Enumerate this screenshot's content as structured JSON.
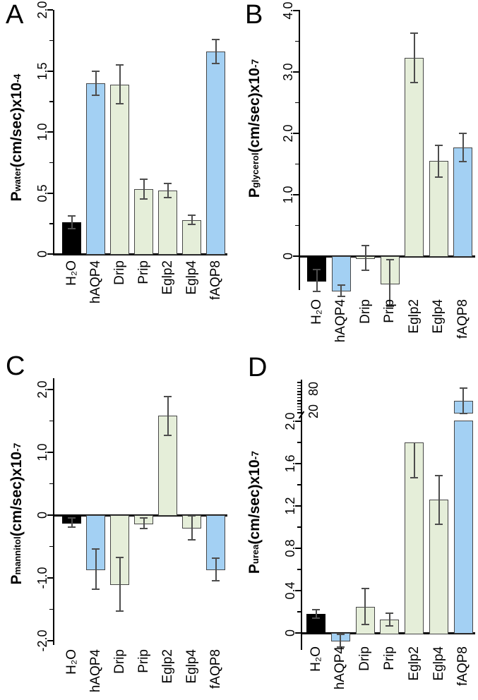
{
  "palette": {
    "black_bar": "#000000",
    "blue_bar": "#a3d0f3",
    "green_bar": "#e5eed9",
    "bar_border": "#474747",
    "error_bar": "#4d4d4d",
    "axis": "#000000",
    "text": "#000000",
    "background": "#ffffff"
  },
  "chart_data": [
    {
      "type": "bar",
      "panel": "A",
      "ylabel": "P_water(cm/sec)x10^-4",
      "ylabel_parts": {
        "prefix": "P",
        "sub": "water",
        "mid": "(cm/sec)x10",
        "exp": "-4"
      },
      "categories": [
        "H₂O",
        "hAQP4",
        "Drip",
        "Prip",
        "Eglp2",
        "Eglp4",
        "fAQP8"
      ],
      "values": [
        0.26,
        1.4,
        1.39,
        0.53,
        0.52,
        0.28,
        1.66
      ],
      "errors": [
        0.05,
        0.1,
        0.16,
        0.08,
        0.06,
        0.04,
        0.1
      ],
      "bar_colors": [
        "black_bar",
        "blue_bar",
        "green_bar",
        "green_bar",
        "green_bar",
        "green_bar",
        "blue_bar"
      ],
      "ylim": [
        0,
        2.0
      ],
      "ytick_labels": [
        "0",
        "0.5",
        "1.0",
        "1.5",
        "2.0"
      ],
      "ytick_values": [
        0,
        0.5,
        1.0,
        1.5,
        2.0
      ],
      "minor_tick_step": 0.25,
      "grid": "off",
      "legend": "none"
    },
    {
      "type": "bar",
      "panel": "B",
      "ylabel": "P_glycerol(cm/sec)x10^-7",
      "ylabel_parts": {
        "prefix": "P",
        "sub": "glycerol",
        "mid": "(cm/sec)x10",
        "exp": "-7"
      },
      "categories": [
        "H₂O",
        "hAQP4",
        "Drip",
        "Prip",
        "Eglp2",
        "Eglp4",
        "fAQP8"
      ],
      "values": [
        -0.4,
        -0.56,
        -0.03,
        -0.44,
        3.23,
        1.55,
        1.77
      ],
      "errors": [
        0.18,
        0.09,
        0.2,
        0.38,
        0.4,
        0.26,
        0.23
      ],
      "bar_colors": [
        "black_bar",
        "blue_bar",
        "green_bar",
        "green_bar",
        "green_bar",
        "green_bar",
        "blue_bar"
      ],
      "ylim": [
        -0.55,
        4.0
      ],
      "ytick_labels": [
        "0",
        "1.0",
        "2.0",
        "3.0",
        "4.0"
      ],
      "ytick_values": [
        0,
        1.0,
        2.0,
        3.0,
        4.0
      ],
      "minor_tick_step": 0.5,
      "grid": "off",
      "legend": "none"
    },
    {
      "type": "bar",
      "panel": "C",
      "ylabel": "P_mannitol(cm/sec)x10^-7",
      "ylabel_parts": {
        "prefix": "P",
        "sub": "mannitol",
        "mid": "(cm/sec)x10",
        "exp": "-7"
      },
      "categories": [
        "H₂O",
        "hAQP4",
        "Drip",
        "Prip",
        "Eglp2",
        "Eglp4",
        "fAQP8"
      ],
      "values": [
        -0.12,
        -0.86,
        -1.1,
        -0.13,
        1.58,
        -0.2,
        -0.86
      ],
      "errors": [
        0.07,
        0.32,
        0.43,
        0.08,
        0.31,
        0.19,
        0.18
      ],
      "bar_colors": [
        "black_bar",
        "blue_bar",
        "green_bar",
        "green_bar",
        "green_bar",
        "green_bar",
        "blue_bar"
      ],
      "ylim": [
        -2.1,
        2.1
      ],
      "ytick_labels": [
        "-2.0",
        "-1.0",
        "0",
        "1.0",
        "2.0"
      ],
      "ytick_values": [
        -2.0,
        -1.0,
        0,
        1.0,
        2.0
      ],
      "minor_tick_step": 0.5,
      "grid": "off",
      "legend": "none"
    },
    {
      "type": "bar",
      "panel": "D",
      "ylabel": "P_urea(cm/sec)x10^-7",
      "ylabel_parts": {
        "prefix": "P",
        "sub": "urea",
        "mid": "(cm/sec)x10",
        "exp": "-7"
      },
      "categories": [
        "H₂O",
        "hAQP4",
        "Drip",
        "Prip",
        "Eglp2",
        "Eglp4",
        "fAQP8"
      ],
      "values": [
        0.18,
        -0.07,
        0.25,
        0.13,
        1.8,
        1.26,
        48
      ],
      "errors": [
        0.04,
        0.06,
        0.17,
        0.06,
        0.33,
        0.23,
        33
      ],
      "bar_colors": [
        "black_bar",
        "blue_bar",
        "green_bar",
        "green_bar",
        "green_bar",
        "green_bar",
        "blue_bar"
      ],
      "ylim": [
        -0.16,
        2.0
      ],
      "ytick_labels": [
        "0",
        "0.4",
        "0.8",
        "1.2",
        "1.6",
        "2.0"
      ],
      "ytick_values": [
        0,
        0.4,
        0.8,
        1.2,
        1.6,
        2.0
      ],
      "minor_tick_step": 0.2,
      "axis_break": {
        "above_value": 2.0,
        "upper_scale_tick_labels": [
          "20",
          "80"
        ],
        "upper_scale_tick_values": [
          20,
          80
        ],
        "bar_through_break": "fAQP8"
      },
      "grid": "off",
      "legend": "none"
    }
  ]
}
